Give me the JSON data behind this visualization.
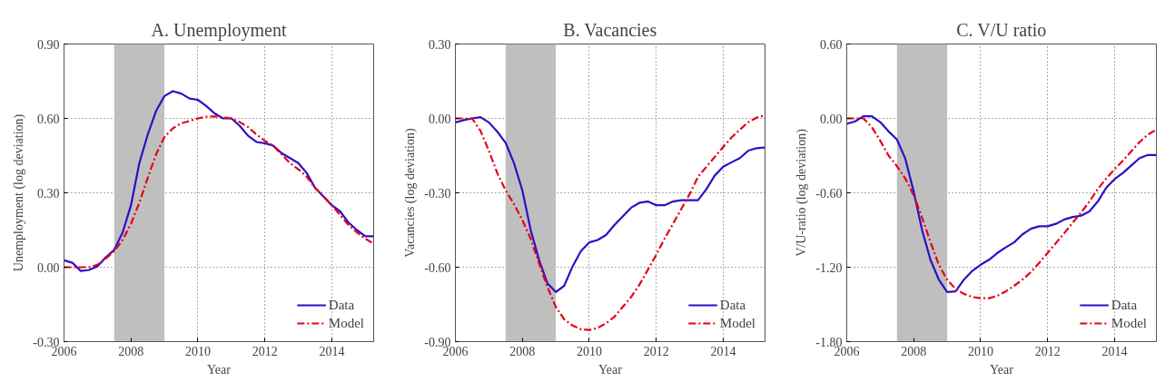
{
  "chart_data": [
    {
      "type": "line",
      "title": "A. Unemployment",
      "xlabel": "Year",
      "ylabel": "Unemployment (log deviation)",
      "x": [
        2006.0,
        2006.25,
        2006.5,
        2006.75,
        2007.0,
        2007.25,
        2007.5,
        2007.75,
        2008.0,
        2008.25,
        2008.5,
        2008.75,
        2009.0,
        2009.25,
        2009.5,
        2009.75,
        2010.0,
        2010.25,
        2010.5,
        2010.75,
        2011.0,
        2011.25,
        2011.5,
        2011.75,
        2012.0,
        2012.25,
        2012.5,
        2012.75,
        2013.0,
        2013.25,
        2013.5,
        2013.75,
        2014.0,
        2014.25,
        2014.5,
        2014.75,
        2015.0,
        2015.25
      ],
      "series": [
        {
          "name": "Data",
          "color": "#2e0fc4",
          "line_style": "solid",
          "values": [
            0.028,
            0.018,
            -0.015,
            -0.011,
            0.004,
            0.04,
            0.07,
            0.14,
            0.25,
            0.42,
            0.535,
            0.63,
            0.69,
            0.71,
            0.7,
            0.68,
            0.675,
            0.65,
            0.62,
            0.6,
            0.6,
            0.57,
            0.53,
            0.505,
            0.5,
            0.49,
            0.46,
            0.44,
            0.42,
            0.38,
            0.32,
            0.285,
            0.25,
            0.225,
            0.18,
            0.15,
            0.125,
            0.125
          ]
        },
        {
          "name": "Model",
          "color": "#e6001a",
          "line_style": "dashed",
          "values": [
            0,
            0,
            0,
            0,
            0.01,
            0.035,
            0.065,
            0.11,
            0.175,
            0.26,
            0.36,
            0.455,
            0.525,
            0.56,
            0.58,
            0.59,
            0.6,
            0.607,
            0.608,
            0.605,
            0.6,
            0.585,
            0.565,
            0.535,
            0.51,
            0.49,
            0.455,
            0.42,
            0.395,
            0.365,
            0.32,
            0.285,
            0.25,
            0.21,
            0.17,
            0.14,
            0.115,
            0.095
          ]
        }
      ],
      "xlim": [
        2006,
        2015.25
      ],
      "xticks": [
        2006,
        2008,
        2010,
        2012,
        2014
      ],
      "ylim": [
        -0.3,
        0.9
      ],
      "yticks": [
        {
          "value": -0.3,
          "label": "-0.30"
        },
        {
          "value": 0,
          "label": "0.00"
        },
        {
          "value": 0.3,
          "label": "0.30"
        },
        {
          "value": 0.6,
          "label": "0.60"
        },
        {
          "value": 0.9,
          "label": "0.90"
        }
      ],
      "bands": [
        {
          "axis": "x",
          "from": 2007.5,
          "to": 2009,
          "color": "#bfbfbf"
        }
      ],
      "grid": true,
      "legend": "bottom right"
    },
    {
      "type": "line",
      "title": "B. Vacancies",
      "xlabel": "Year",
      "ylabel": "Vacancies (log deviation)",
      "x": [
        2006.0,
        2006.25,
        2006.5,
        2006.75,
        2007.0,
        2007.25,
        2007.5,
        2007.75,
        2008.0,
        2008.25,
        2008.5,
        2008.75,
        2009.0,
        2009.25,
        2009.5,
        2009.75,
        2010.0,
        2010.25,
        2010.5,
        2010.75,
        2011.0,
        2011.25,
        2011.5,
        2011.75,
        2012.0,
        2012.25,
        2012.5,
        2012.75,
        2013.0,
        2013.25,
        2013.5,
        2013.75,
        2014.0,
        2014.25,
        2014.5,
        2014.75,
        2015.0,
        2015.25
      ],
      "series": [
        {
          "name": "Data",
          "color": "#2e0fc4",
          "line_style": "solid",
          "values": [
            -0.016,
            -0.007,
            0,
            0.005,
            -0.016,
            -0.053,
            -0.098,
            -0.18,
            -0.29,
            -0.45,
            -0.57,
            -0.665,
            -0.7,
            -0.675,
            -0.597,
            -0.535,
            -0.5,
            -0.49,
            -0.47,
            -0.43,
            -0.395,
            -0.36,
            -0.34,
            -0.335,
            -0.35,
            -0.35,
            -0.335,
            -0.33,
            -0.33,
            -0.33,
            -0.285,
            -0.23,
            -0.195,
            -0.177,
            -0.16,
            -0.13,
            -0.12,
            -0.117
          ]
        },
        {
          "name": "Model",
          "color": "#e6001a",
          "line_style": "dashed",
          "values": [
            0,
            0,
            0,
            -0.05,
            -0.13,
            -0.22,
            -0.29,
            -0.345,
            -0.41,
            -0.485,
            -0.585,
            -0.68,
            -0.76,
            -0.81,
            -0.835,
            -0.85,
            -0.853,
            -0.845,
            -0.826,
            -0.8,
            -0.76,
            -0.72,
            -0.67,
            -0.61,
            -0.55,
            -0.485,
            -0.425,
            -0.365,
            -0.305,
            -0.235,
            -0.195,
            -0.155,
            -0.115,
            -0.077,
            -0.045,
            -0.015,
            0.003,
            0.012
          ]
        }
      ],
      "xlim": [
        2006,
        2015.25
      ],
      "xticks": [
        2006,
        2008,
        2010,
        2012,
        2014
      ],
      "ylim": [
        -0.9,
        0.3
      ],
      "yticks": [
        {
          "value": -0.9,
          "label": "-0.90"
        },
        {
          "value": -0.6,
          "label": "-0.60"
        },
        {
          "value": -0.3,
          "label": "-0.30"
        },
        {
          "value": 0,
          "label": "0.00"
        },
        {
          "value": 0.3,
          "label": "0.30"
        }
      ],
      "bands": [
        {
          "axis": "x",
          "from": 2007.5,
          "to": 2009,
          "color": "#bfbfbf"
        }
      ],
      "grid": true,
      "legend": "bottom right"
    },
    {
      "type": "line",
      "title": "C. V/U ratio",
      "xlabel": "Year",
      "ylabel": "V/U-ratio (log deviation)",
      "x": [
        2006.0,
        2006.25,
        2006.5,
        2006.75,
        2007.0,
        2007.25,
        2007.5,
        2007.75,
        2008.0,
        2008.25,
        2008.5,
        2008.75,
        2009.0,
        2009.25,
        2009.5,
        2009.75,
        2010.0,
        2010.25,
        2010.5,
        2010.75,
        2011.0,
        2011.25,
        2011.5,
        2011.75,
        2012.0,
        2012.25,
        2012.5,
        2012.75,
        2013.0,
        2013.25,
        2013.5,
        2013.75,
        2014.0,
        2014.25,
        2014.5,
        2014.75,
        2015.0,
        2015.25
      ],
      "series": [
        {
          "name": "Data",
          "color": "#2e0fc4",
          "line_style": "solid",
          "values": [
            -0.044,
            -0.024,
            0.017,
            0.017,
            -0.03,
            -0.105,
            -0.17,
            -0.325,
            -0.59,
            -0.9,
            -1.14,
            -1.3,
            -1.4,
            -1.395,
            -1.3,
            -1.23,
            -1.18,
            -1.14,
            -1.085,
            -1.04,
            -1.0,
            -0.935,
            -0.89,
            -0.87,
            -0.87,
            -0.85,
            -0.815,
            -0.795,
            -0.785,
            -0.75,
            -0.67,
            -0.56,
            -0.49,
            -0.44,
            -0.38,
            -0.32,
            -0.295,
            -0.295
          ]
        },
        {
          "name": "Model",
          "color": "#e6001a",
          "line_style": "dashed",
          "values": [
            0,
            0,
            0,
            -0.07,
            -0.18,
            -0.3,
            -0.385,
            -0.485,
            -0.62,
            -0.8,
            -0.995,
            -1.18,
            -1.3,
            -1.375,
            -1.415,
            -1.44,
            -1.45,
            -1.45,
            -1.43,
            -1.395,
            -1.35,
            -1.3,
            -1.24,
            -1.165,
            -1.085,
            -1.005,
            -0.925,
            -0.84,
            -0.76,
            -0.67,
            -0.57,
            -0.485,
            -0.41,
            -0.34,
            -0.265,
            -0.19,
            -0.13,
            -0.09
          ]
        }
      ],
      "xlim": [
        2006,
        2015.25
      ],
      "xticks": [
        2006,
        2008,
        2010,
        2012,
        2014
      ],
      "ylim": [
        -1.8,
        0.6
      ],
      "yticks": [
        {
          "value": -1.8,
          "label": "-1.80"
        },
        {
          "value": -1.2,
          "label": "-1.20"
        },
        {
          "value": -0.6,
          "label": "-0.60"
        },
        {
          "value": 0,
          "label": "0.00"
        },
        {
          "value": 0.6,
          "label": "0.60"
        }
      ],
      "bands": [
        {
          "axis": "x",
          "from": 2007.5,
          "to": 2009,
          "color": "#bfbfbf"
        }
      ],
      "grid": true,
      "legend": "bottom right"
    }
  ]
}
